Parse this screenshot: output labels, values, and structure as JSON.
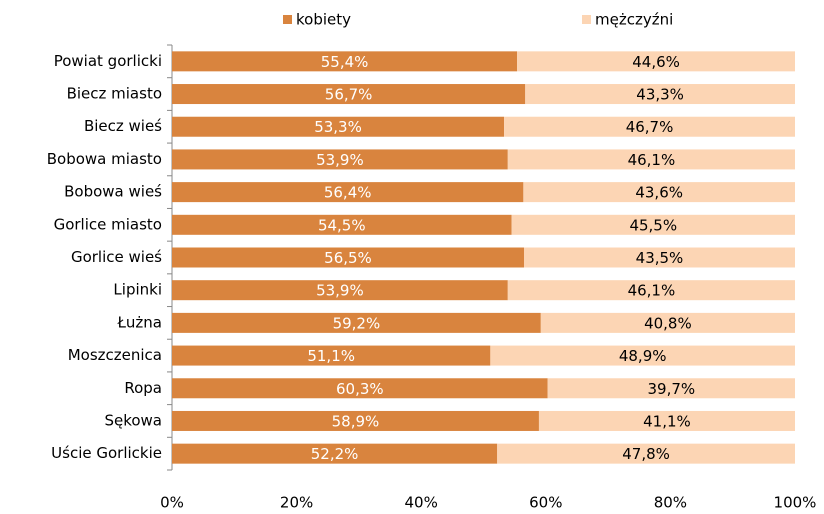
{
  "chart_data": {
    "type": "stacked-bar-horizontal",
    "categories": [
      "Powiat gorlicki",
      "Biecz miasto",
      "Biecz wieś",
      "Bobowa miasto",
      "Bobowa wieś",
      "Gorlice miasto",
      "Gorlice wieś",
      "Lipinki",
      "Łużna",
      "Moszczenica",
      "Ropa",
      "Sękowa",
      "Uście Gorlickie"
    ],
    "series": [
      {
        "name": "kobiety",
        "color": "#d9843e",
        "label_color": "#ffffff",
        "values": [
          55.4,
          56.7,
          53.3,
          53.9,
          56.4,
          54.5,
          56.5,
          53.9,
          59.2,
          51.1,
          60.3,
          58.9,
          52.2
        ],
        "value_labels": [
          "55,4%",
          "56,7%",
          "53,3%",
          "53,9%",
          "56,4%",
          "54,5%",
          "56,5%",
          "53,9%",
          "59,2%",
          "51,1%",
          "60,3%",
          "58,9%",
          "52,2%"
        ]
      },
      {
        "name": "mężczyźni",
        "color": "#fcd5b4",
        "label_color": "#000000",
        "values": [
          44.6,
          43.3,
          46.7,
          46.1,
          43.6,
          45.5,
          43.5,
          46.1,
          40.8,
          48.9,
          39.7,
          41.1,
          47.8
        ],
        "value_labels": [
          "44,6%",
          "43,3%",
          "46,7%",
          "46,1%",
          "43,6%",
          "45,5%",
          "43,5%",
          "46,1%",
          "40,8%",
          "48,9%",
          "39,7%",
          "41,1%",
          "47,8%"
        ]
      }
    ],
    "xlim": [
      0,
      100
    ],
    "xticks": [
      {
        "value": 0,
        "label": "0%"
      },
      {
        "value": 20,
        "label": "20%"
      },
      {
        "value": 40,
        "label": "40%"
      },
      {
        "value": 60,
        "label": "60%"
      },
      {
        "value": 80,
        "label": "80%"
      },
      {
        "value": 100,
        "label": "100%"
      }
    ],
    "legend": "top"
  }
}
